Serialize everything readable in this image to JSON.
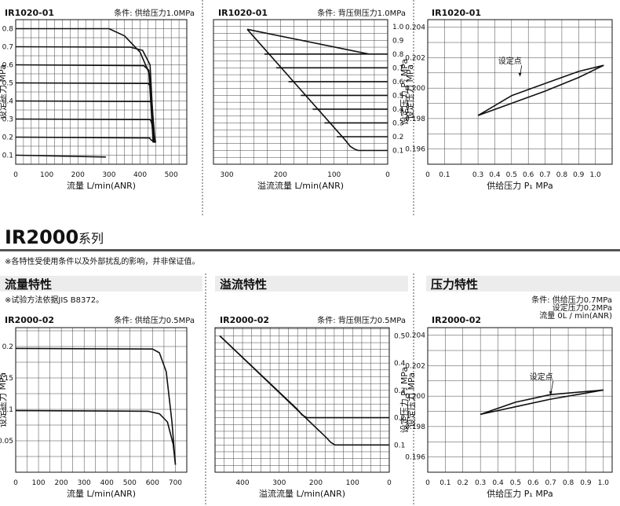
{
  "series_title": {
    "main": "IR2000",
    "suffix": "系列"
  },
  "note": "※各特性受使用条件以及外部扰乱的影响，并非保证值。",
  "sections": [
    {
      "title": "流量特性",
      "note": "※试验方法依据JIS B8372。"
    },
    {
      "title": "溢流特性",
      "note": ""
    },
    {
      "title": "压力特性",
      "note": ""
    }
  ],
  "colors": {
    "line": "#111111",
    "grid": "#444444",
    "bg": "#ffffff",
    "separator": "#555555"
  },
  "chart_data": [
    {
      "type": "line",
      "model": "IR1020-01",
      "condition": "条件: 供给压力1.0MPa",
      "xlabel": "流量  L/min(ANR)",
      "ylabel": "设定压力  MPa",
      "ylabel_side": "left",
      "xlim": [
        0,
        550
      ],
      "ylim": [
        0.05,
        0.85
      ],
      "xticks": [
        0,
        100,
        200,
        300,
        400,
        500
      ],
      "xticklabels": [
        "0",
        "100",
        "200",
        "300",
        "400",
        "500"
      ],
      "yticks": [
        0.1,
        0.2,
        0.3,
        0.4,
        0.5,
        0.6,
        0.7,
        0.8
      ],
      "yticklabels": [
        "0.1",
        "0.2",
        "0.3",
        "0.4",
        "0.5",
        "0.6",
        "0.7",
        "0.8"
      ],
      "grid": {
        "x": 25,
        "y": 0.05
      },
      "series": [
        {
          "x": [
            0,
            290
          ],
          "y": [
            0.1,
            0.09
          ]
        },
        {
          "x": [
            0,
            430,
            435,
            448
          ],
          "y": [
            0.2,
            0.195,
            0.185,
            0.17
          ]
        },
        {
          "x": [
            0,
            432,
            436,
            450
          ],
          "y": [
            0.3,
            0.297,
            0.285,
            0.17
          ]
        },
        {
          "x": [
            0,
            434,
            438,
            448
          ],
          "y": [
            0.4,
            0.397,
            0.385,
            0.17
          ]
        },
        {
          "x": [
            0,
            426,
            433,
            442
          ],
          "y": [
            0.5,
            0.497,
            0.48,
            0.17
          ]
        },
        {
          "x": [
            0,
            412,
            428,
            442
          ],
          "y": [
            0.6,
            0.595,
            0.57,
            0.17
          ]
        },
        {
          "x": [
            0,
            368,
            408,
            432,
            445
          ],
          "y": [
            0.7,
            0.698,
            0.68,
            0.6,
            0.17
          ]
        },
        {
          "x": [
            0,
            300,
            350,
            400,
            430,
            445
          ],
          "y": [
            0.8,
            0.8,
            0.76,
            0.67,
            0.55,
            0.17
          ]
        }
      ]
    },
    {
      "type": "line",
      "model": "IR1020-01",
      "condition": "条件: 背压侧压力1.0MPa",
      "xlabel": "溢流流量  L/min(ANR)",
      "ylabel": "设定压力  MPa",
      "ylabel_side": "right",
      "xlim": [
        325,
        0
      ],
      "ylim": [
        0,
        1.05
      ],
      "xticks": [
        300,
        200,
        100,
        0
      ],
      "xticklabels": [
        "300",
        "200",
        "100",
        "0"
      ],
      "yticks": [
        0.1,
        0.2,
        0.3,
        0.4,
        0.5,
        0.6,
        0.7,
        0.8,
        0.9,
        1.0
      ],
      "yticklabels": [
        "0.1",
        "0.2",
        "0.3",
        "0.4",
        "0.5",
        "0.6",
        "0.7",
        "0.8",
        "0.9",
        "1.0"
      ],
      "grid": {
        "x": 25,
        "y": 0.05
      },
      "series": [
        {
          "x": [
            262,
            35
          ],
          "y": [
            0.98,
            0.8
          ]
        },
        {
          "x": [
            262,
            78,
            70,
            62,
            55,
            0
          ],
          "y": [
            0.98,
            0.17,
            0.13,
            0.11,
            0.1,
            0.1
          ]
        },
        {
          "x": [
            95,
            0
          ],
          "y": [
            0.2,
            0.2
          ]
        },
        {
          "x": [
            118,
            0
          ],
          "y": [
            0.3,
            0.3
          ]
        },
        {
          "x": [
            140,
            0
          ],
          "y": [
            0.4,
            0.4
          ]
        },
        {
          "x": [
            162,
            0
          ],
          "y": [
            0.5,
            0.5
          ]
        },
        {
          "x": [
            185,
            0
          ],
          "y": [
            0.6,
            0.6
          ]
        },
        {
          "x": [
            208,
            0
          ],
          "y": [
            0.7,
            0.7
          ]
        },
        {
          "x": [
            230,
            0
          ],
          "y": [
            0.8,
            0.8
          ]
        }
      ]
    },
    {
      "type": "line",
      "model": "IR1020-01",
      "condition": "",
      "xlabel": "供给压力  P₁  MPa",
      "ylabel": "设定压力  P₂  MPa",
      "ylabel_side": "left",
      "xlim": [
        0,
        1.1
      ],
      "ylim": [
        0.195,
        0.2045
      ],
      "xticks": [
        0,
        0.1,
        0.3,
        0.4,
        0.5,
        0.6,
        0.7,
        0.8,
        0.9,
        1.0
      ],
      "xticklabels": [
        "0",
        "0.1",
        "0.3",
        "0.4",
        "0.5",
        "0.6",
        "0.7",
        "0.8",
        "0.9",
        "1.0"
      ],
      "yticks": [
        0.196,
        0.198,
        0.2,
        0.202,
        0.204
      ],
      "yticklabels": [
        "0.196",
        "0.198",
        "0.200",
        "0.202",
        "0.204"
      ],
      "grid": {
        "x": 0.1,
        "y": 0.001
      },
      "annotation": {
        "text": "设定点",
        "x": 0.55,
        "y": 0.2007,
        "tx": 0.42,
        "ty": 0.2016
      },
      "series": [
        {
          "x": [
            0.3,
            0.5,
            0.7,
            0.9,
            1.05
          ],
          "y": [
            0.1982,
            0.199,
            0.1998,
            0.2007,
            0.2015
          ]
        },
        {
          "x": [
            0.3,
            0.5,
            0.7,
            0.9,
            1.05
          ],
          "y": [
            0.1982,
            0.1995,
            0.2003,
            0.2011,
            0.2015
          ]
        }
      ]
    },
    {
      "type": "line",
      "model": "IR2000-02",
      "condition": "条件: 供给压力0.5MPa",
      "xlabel": "流量  L/min(ANR)",
      "ylabel": "设定压力  MPa",
      "ylabel_side": "left",
      "xlim": [
        0,
        750
      ],
      "ylim": [
        0,
        0.23
      ],
      "xticks": [
        0,
        100,
        200,
        300,
        400,
        500,
        600,
        700
      ],
      "xticklabels": [
        "0",
        "100",
        "200",
        "300",
        "400",
        "500",
        "600",
        "700"
      ],
      "yticks": [
        0.05,
        0.1,
        0.15,
        0.2
      ],
      "yticklabels": [
        "0.05",
        "0.1",
        "0.15",
        "0.2"
      ],
      "grid": {
        "x": 50,
        "y": 0.025
      },
      "series": [
        {
          "x": [
            0,
            600,
            630,
            660,
            685,
            700
          ],
          "y": [
            0.197,
            0.196,
            0.19,
            0.16,
            0.08,
            0.012
          ]
        },
        {
          "x": [
            0,
            580,
            630,
            665,
            690,
            700
          ],
          "y": [
            0.098,
            0.097,
            0.093,
            0.08,
            0.045,
            0.012
          ]
        }
      ]
    },
    {
      "type": "line",
      "model": "IR2000-02",
      "condition": "条件: 背压侧压力0.5MPa",
      "xlabel": "溢流流量  L/min(ANR)",
      "ylabel": "设定压力  MPa",
      "ylabel_side": "right",
      "xlim": [
        475,
        0
      ],
      "ylim": [
        0,
        0.53
      ],
      "xticks": [
        400,
        300,
        200,
        100,
        0
      ],
      "xticklabels": [
        "400",
        "300",
        "200",
        "100",
        "0"
      ],
      "yticks": [
        0.1,
        0.2,
        0.3,
        0.4,
        0.5
      ],
      "yticklabels": [
        "0.1",
        "0.2",
        "0.3",
        "0.4",
        "0.5"
      ],
      "grid": {
        "x": 25,
        "y": 0.025
      },
      "series": [
        {
          "x": [
            462,
            250,
            238,
            225,
            0
          ],
          "y": [
            0.5,
            0.23,
            0.21,
            0.2,
            0.2
          ]
        },
        {
          "x": [
            462,
            170,
            160,
            148,
            0
          ],
          "y": [
            0.5,
            0.125,
            0.11,
            0.1,
            0.1
          ]
        }
      ]
    },
    {
      "type": "line",
      "model": "IR2000-02",
      "condition": "条件: 供给压力0.7MPa\n设定压力0.2MPa\n流量 0L / min(ANR)",
      "xlabel": "供给压力  P₁  MPa",
      "ylabel": "设定压力  P₂  MPa",
      "ylabel_side": "left",
      "xlim": [
        0,
        1.05
      ],
      "ylim": [
        0.195,
        0.2045
      ],
      "xticks": [
        0,
        0.1,
        0.2,
        0.3,
        0.4,
        0.5,
        0.6,
        0.7,
        0.8,
        0.9,
        1.0
      ],
      "xticklabels": [
        "0",
        "0.1",
        "0.2",
        "0.3",
        "0.4",
        "0.5",
        "0.6",
        "0.7",
        "0.8",
        "0.9",
        "1.0"
      ],
      "yticks": [
        0.196,
        0.198,
        0.2,
        0.202,
        0.204
      ],
      "yticklabels": [
        "0.196",
        "0.198",
        "0.200",
        "0.202",
        "0.204"
      ],
      "grid": {
        "x": 0.1,
        "y": 0.001
      },
      "annotation": {
        "text": "设定点",
        "x": 0.7,
        "y": 0.2,
        "tx": 0.58,
        "ty": 0.2011
      },
      "series": [
        {
          "x": [
            0.3,
            0.5,
            0.7,
            0.9,
            1.0
          ],
          "y": [
            0.1988,
            0.1993,
            0.1998,
            0.2002,
            0.2004
          ]
        },
        {
          "x": [
            0.3,
            0.5,
            0.7,
            0.9,
            1.0
          ],
          "y": [
            0.1988,
            0.1996,
            0.2001,
            0.2003,
            0.2004
          ]
        }
      ]
    }
  ]
}
